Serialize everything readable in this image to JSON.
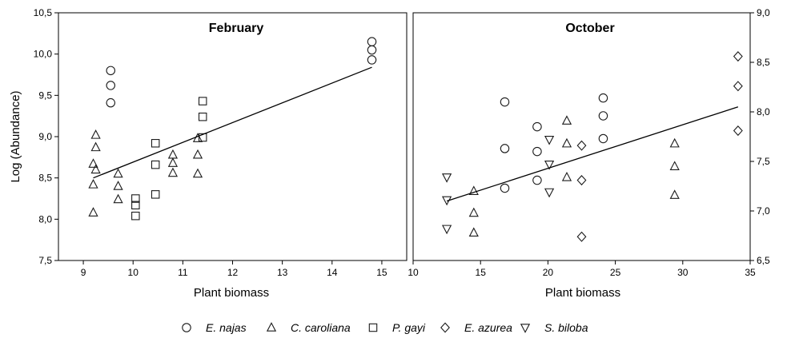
{
  "chart_data": [
    {
      "type": "scatter",
      "title": "February",
      "xlabel": "Plant biomass",
      "ylabel": "Log (Abundance)",
      "xlim": [
        8.5,
        15.5
      ],
      "ylim": [
        7.5,
        10.5
      ],
      "xticks": [
        "9",
        "10",
        "11",
        "12",
        "13",
        "14",
        "15"
      ],
      "yticks": [
        "7,5",
        "8,0",
        "8,5",
        "9,0",
        "9,5",
        "10,0",
        "10,5"
      ],
      "y_axis_side": "left",
      "series": [
        {
          "name": "E. najas",
          "marker": "circle",
          "x": [
            9.55,
            9.55,
            9.55,
            14.8,
            14.8,
            14.8
          ],
          "y": [
            9.8,
            9.62,
            9.41,
            10.15,
            10.05,
            9.93
          ]
        },
        {
          "name": "C. caroliana",
          "marker": "triangle-up",
          "x": [
            9.25,
            9.25,
            9.2,
            9.25,
            9.2,
            9.2,
            9.7,
            9.7,
            9.7,
            10.8,
            10.8,
            10.8,
            11.3,
            11.3,
            11.3
          ],
          "y": [
            9.02,
            8.87,
            8.67,
            8.6,
            8.42,
            8.08,
            8.55,
            8.4,
            8.24,
            8.78,
            8.68,
            8.56,
            8.98,
            8.78,
            8.55
          ]
        },
        {
          "name": "P. gayi",
          "marker": "square",
          "x": [
            10.05,
            10.05,
            10.05,
            10.45,
            10.45,
            10.45,
            11.4,
            11.4,
            11.4
          ],
          "y": [
            8.25,
            8.17,
            8.04,
            8.92,
            8.66,
            8.3,
            9.43,
            9.24,
            8.99
          ]
        }
      ],
      "trendline": {
        "x": [
          9.2,
          14.8
        ],
        "y": [
          8.5,
          9.84
        ]
      }
    },
    {
      "type": "scatter",
      "title": "October",
      "xlabel": "Plant biomass",
      "ylabel": "",
      "xlim": [
        10,
        35
      ],
      "ylim": [
        6.5,
        9.0
      ],
      "xticks": [
        "10",
        "15",
        "20",
        "25",
        "30",
        "35"
      ],
      "yticks": [
        "6,5",
        "7,0",
        "7,5",
        "8,0",
        "8,5",
        "9,0"
      ],
      "y_axis_side": "right",
      "series": [
        {
          "name": "E. najas",
          "marker": "circle",
          "x": [
            16.8,
            16.8,
            16.8,
            19.2,
            19.2,
            19.2,
            24.1,
            24.1,
            24.1
          ],
          "y": [
            8.1,
            7.63,
            7.23,
            7.85,
            7.6,
            7.31,
            8.14,
            7.96,
            7.73
          ]
        },
        {
          "name": "C. caroliana",
          "marker": "triangle-up",
          "x": [
            14.5,
            14.5,
            14.5,
            21.4,
            21.4,
            21.4,
            29.4,
            29.4,
            29.4
          ],
          "y": [
            7.2,
            6.98,
            6.78,
            7.91,
            7.68,
            7.34,
            7.68,
            7.45,
            7.16
          ]
        },
        {
          "name": "E. azurea",
          "marker": "diamond",
          "x": [
            22.5,
            22.5,
            22.5,
            34.1,
            34.1,
            34.1
          ],
          "y": [
            7.66,
            7.31,
            6.74,
            8.56,
            8.26,
            7.81
          ]
        },
        {
          "name": "S. biloba",
          "marker": "triangle-down",
          "x": [
            12.5,
            12.5,
            12.5,
            20.1,
            20.1,
            20.1
          ],
          "y": [
            7.34,
            7.11,
            6.82,
            7.72,
            7.47,
            7.19
          ]
        }
      ],
      "trendline": {
        "x": [
          12.5,
          34.1
        ],
        "y": [
          7.1,
          8.05
        ]
      }
    }
  ],
  "legend": {
    "placement": "bottom",
    "items": [
      {
        "label": "E. najas",
        "marker": "circle"
      },
      {
        "label": "C. caroliana",
        "marker": "triangle-up"
      },
      {
        "label": "P. gayi",
        "marker": "square"
      },
      {
        "label": "E. azurea",
        "marker": "diamond"
      },
      {
        "label": "S. biloba",
        "marker": "triangle-down"
      }
    ]
  },
  "colors": {
    "marker_stroke": "#1a1a1a",
    "axis": "#000000",
    "background": "#ffffff"
  }
}
